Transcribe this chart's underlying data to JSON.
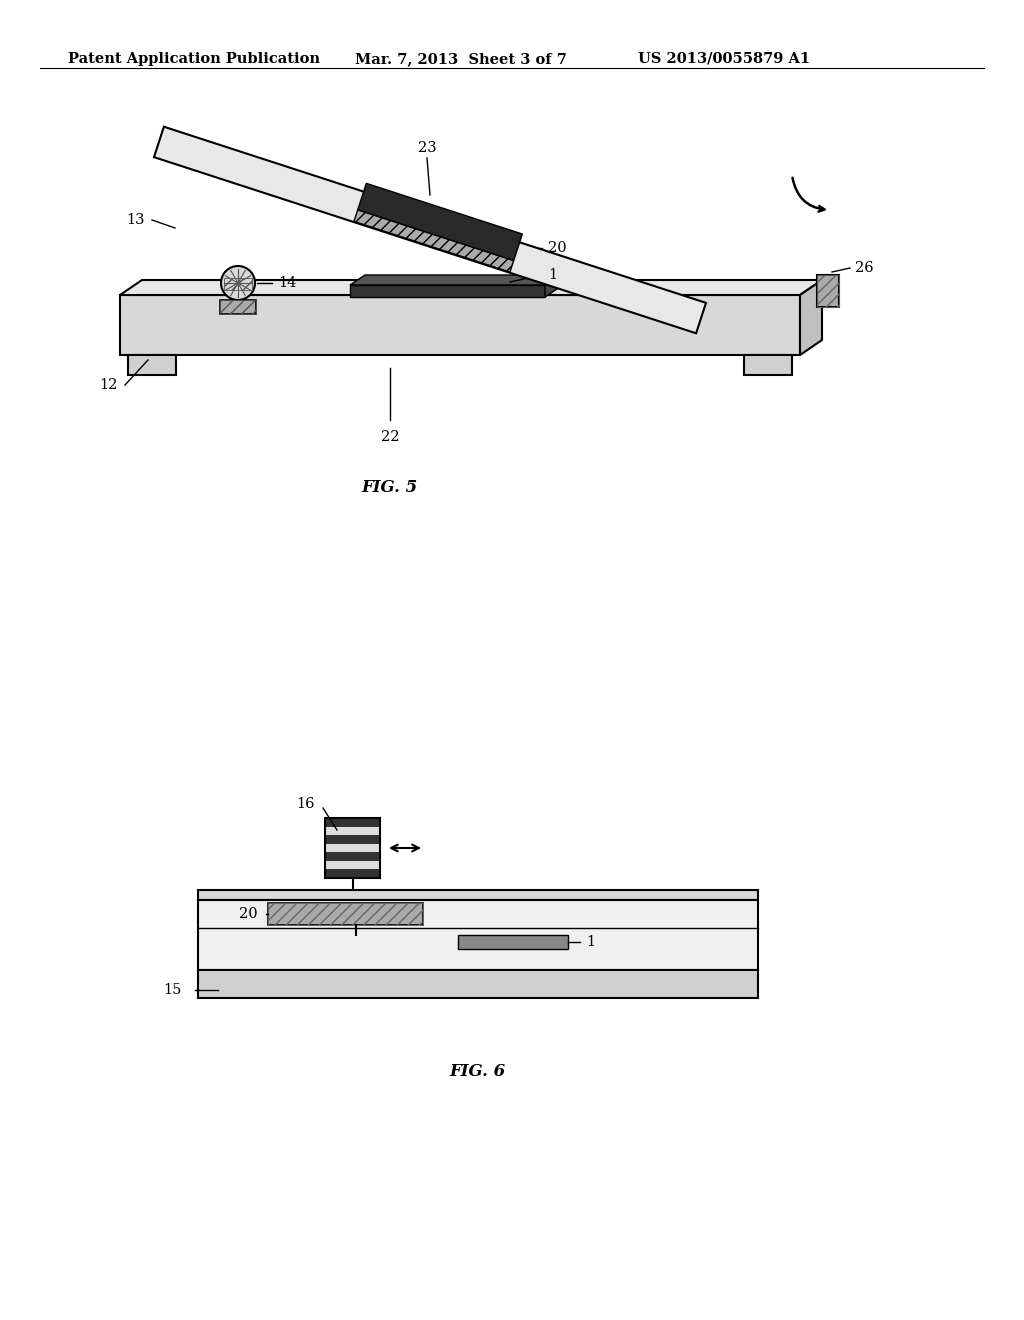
{
  "header_left": "Patent Application Publication",
  "header_mid": "Mar. 7, 2013  Sheet 3 of 7",
  "header_right": "US 2013/0055879 A1",
  "fig5_caption": "FIG. 5",
  "fig6_caption": "FIG. 6",
  "bg_color": "#ffffff",
  "line_color": "#000000",
  "dark_gray": "#404040",
  "mid_gray": "#888888",
  "light_gray": "#cccccc"
}
